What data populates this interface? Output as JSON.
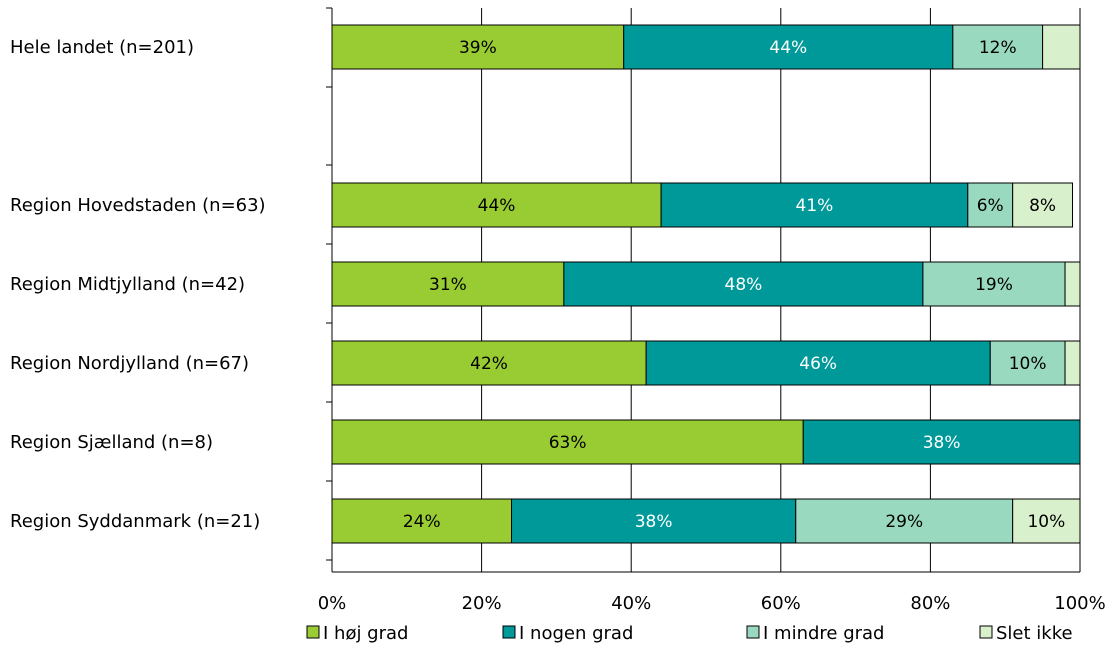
{
  "chart_data": {
    "type": "bar",
    "orientation": "horizontal",
    "stacked": "percent",
    "categories": [
      "Hele landet (n=201)",
      "Region Hovedstaden (n=63)",
      "Region Midtjylland (n=42)",
      "Region Nordjylland (n=67)",
      "Region Sjælland (n=8)",
      "Region Syddanmark (n=21)"
    ],
    "series": [
      {
        "name": "I høj grad",
        "color": "#99cc33",
        "label_color": "#000000",
        "values": [
          39,
          44,
          31,
          42,
          63,
          24
        ]
      },
      {
        "name": "I nogen grad",
        "color": "#009999",
        "label_color": "#ffffff",
        "values": [
          44,
          41,
          48,
          46,
          38,
          38
        ]
      },
      {
        "name": "I mindre grad",
        "color": "#99d9bf",
        "label_color": "#000000",
        "values": [
          12,
          6,
          19,
          10,
          0,
          29
        ]
      },
      {
        "name": "Slet ikke",
        "color": "#d9f0cc",
        "label_color": "#000000",
        "values": [
          5,
          8,
          2,
          2,
          0,
          10
        ]
      }
    ],
    "data_labels": [
      [
        "39%",
        "44%",
        "12%",
        ""
      ],
      [
        "44%",
        "41%",
        "6%",
        "8%"
      ],
      [
        "31%",
        "48%",
        "19%",
        ""
      ],
      [
        "42%",
        "46%",
        "10%",
        ""
      ],
      [
        "63%",
        "38%",
        "",
        ""
      ],
      [
        "24%",
        "38%",
        "29%",
        "10%"
      ]
    ],
    "x_ticks": [
      "0%",
      "20%",
      "40%",
      "60%",
      "80%",
      "100%"
    ],
    "xlim": [
      0,
      100
    ],
    "grid": true,
    "legend_position": "bottom"
  }
}
